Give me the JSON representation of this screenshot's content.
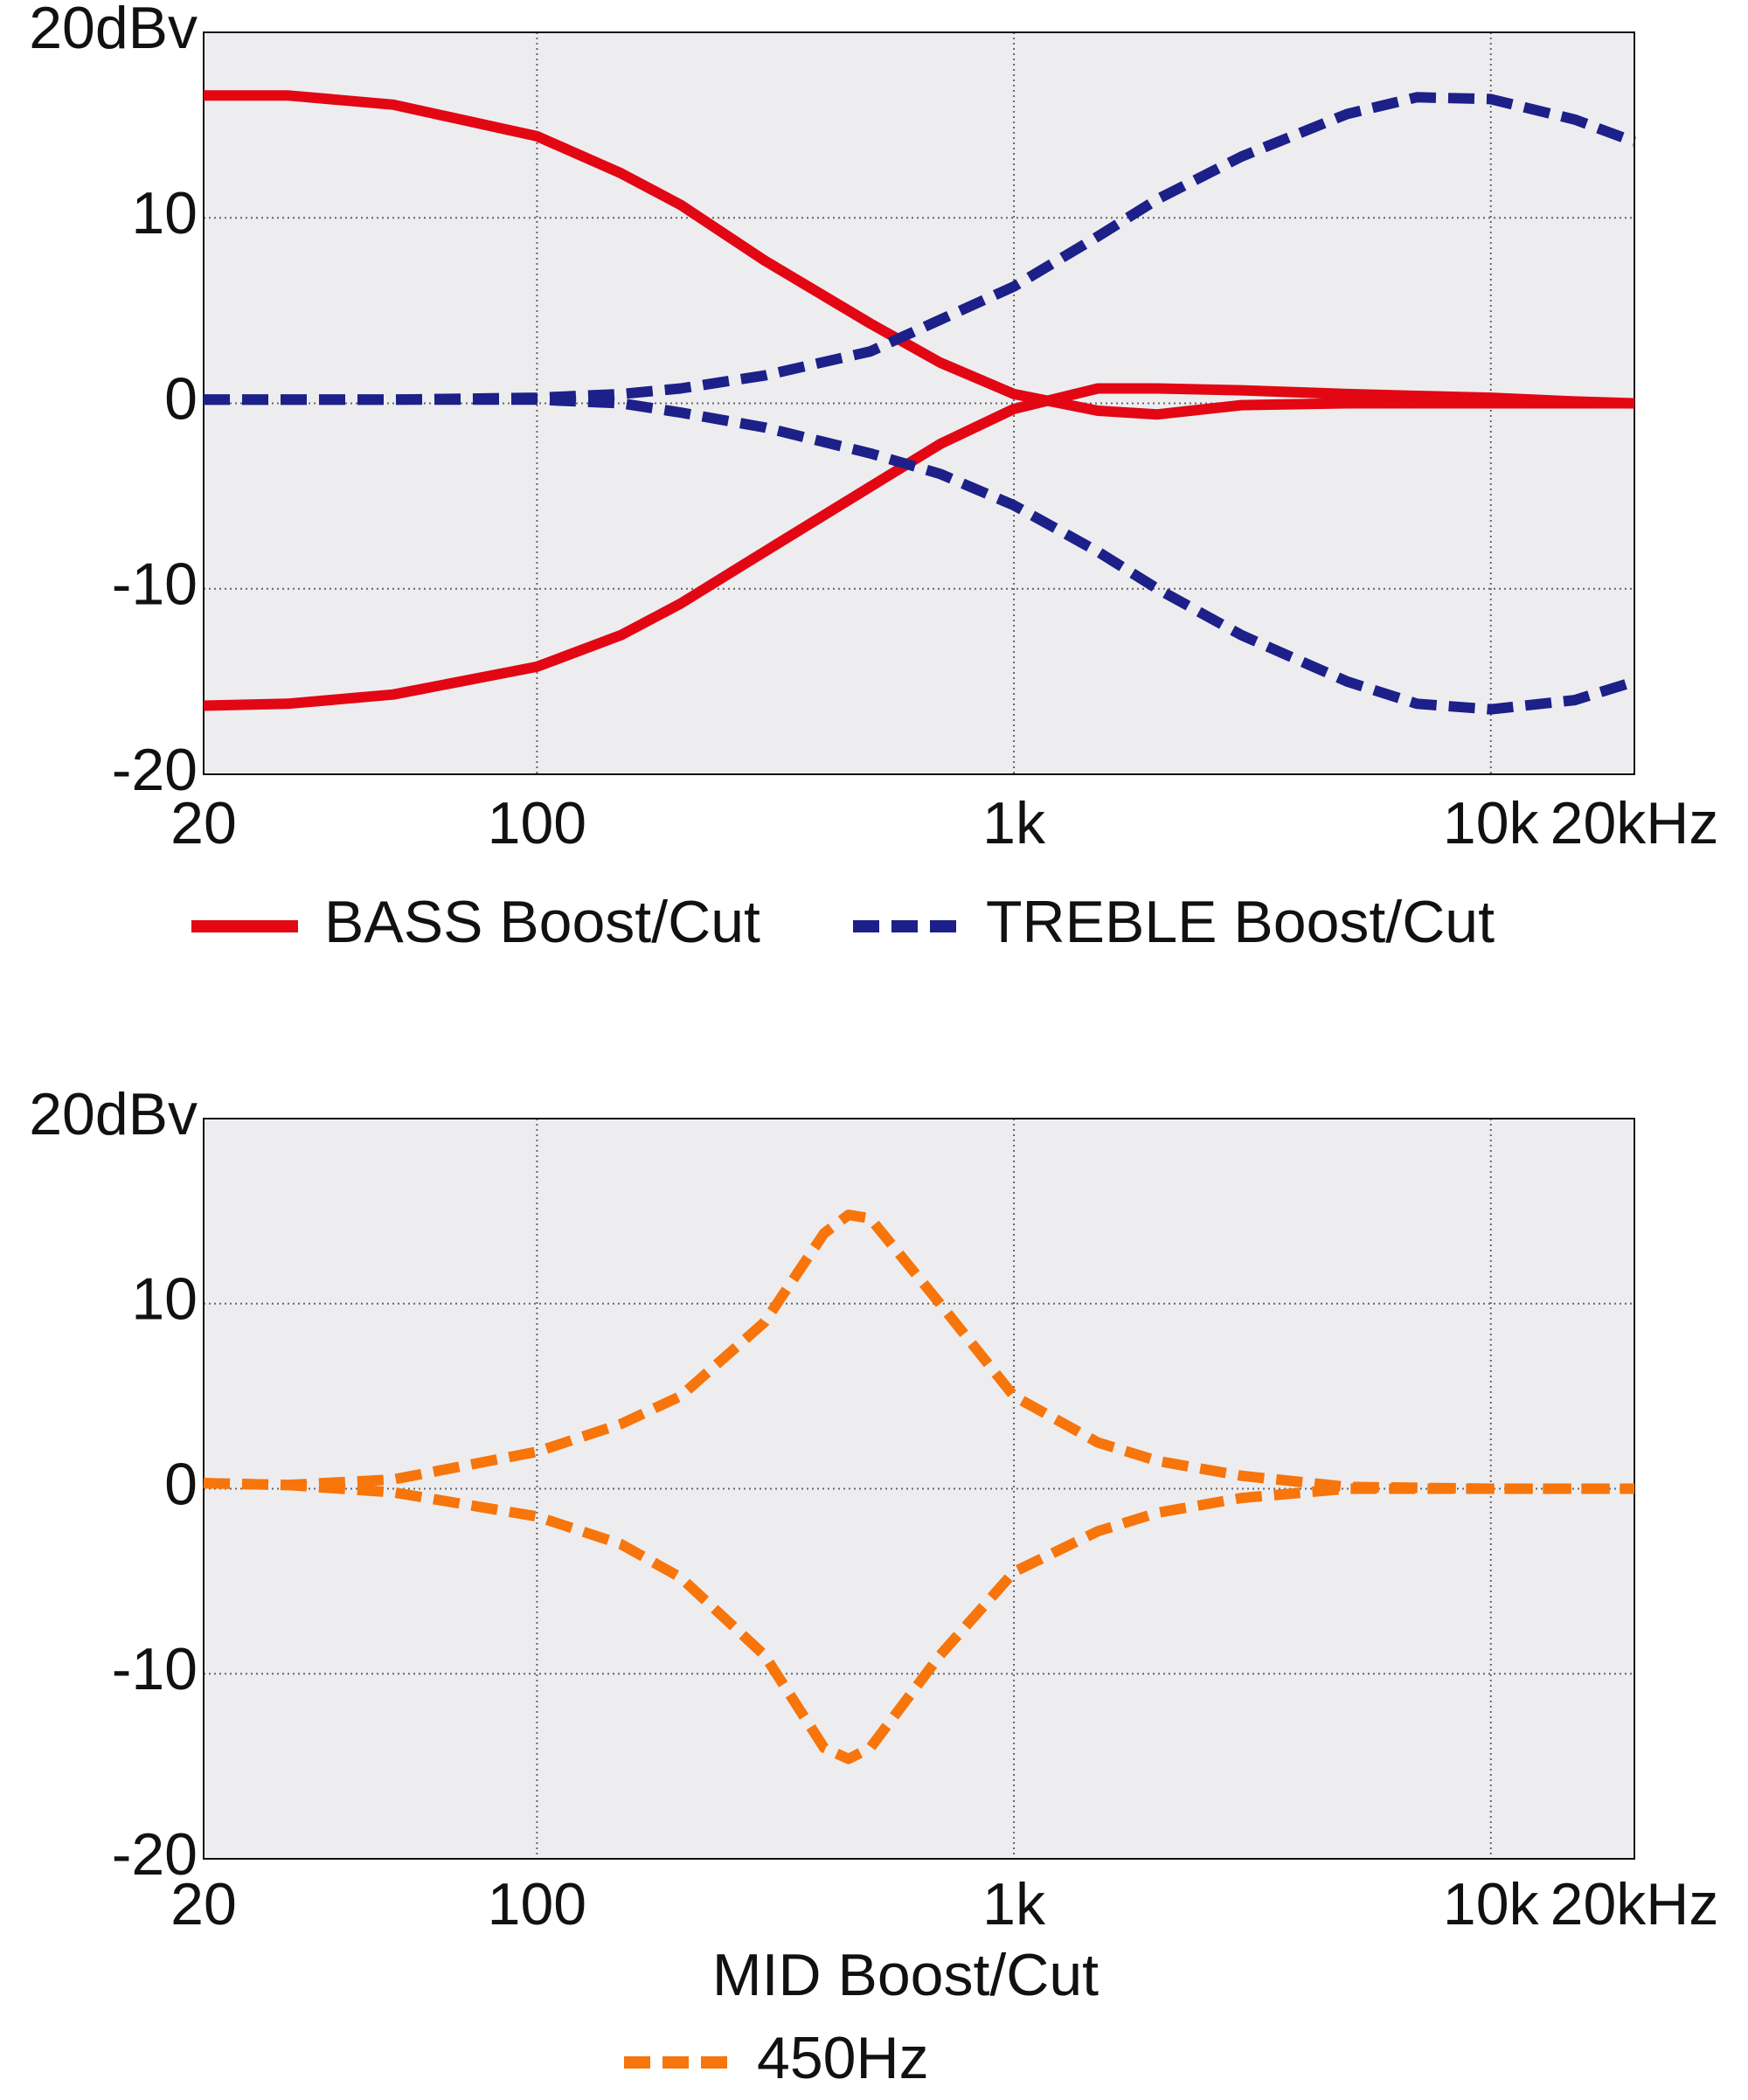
{
  "chart_data": [
    {
      "type": "line",
      "log_x": true,
      "grid": true,
      "x": [
        20,
        30,
        50,
        100,
        150,
        200,
        300,
        500,
        700,
        1000,
        1500,
        2000,
        3000,
        5000,
        7000,
        10000,
        15000,
        20000
      ],
      "xlim": [
        20,
        20000
      ],
      "xticks": [
        20,
        100,
        {
          "value": 1000,
          "label": "1k"
        },
        {
          "value": 10000,
          "label": "10k"
        },
        {
          "value": 20000,
          "label": "20kHz"
        }
      ],
      "ylim": [
        -20,
        20
      ],
      "yticks": [
        {
          "value": -20,
          "label": "-20"
        },
        -10,
        0,
        10,
        {
          "value": 20,
          "label": "20dBv"
        }
      ],
      "series": [
        {
          "name": "BASS Boost/Cut",
          "color": "#e30613",
          "dashed": false,
          "values": [
            [
              16.6,
              16.6,
              16.1,
              14.4,
              12.4,
              10.7,
              7.7,
              4.3,
              2.2,
              0.5,
              -0.4,
              -0.6,
              -0.1,
              0,
              0,
              0,
              0,
              0
            ],
            [
              -16.3,
              -16.2,
              -15.7,
              -14.2,
              -12.5,
              -10.8,
              -8,
              -4.5,
              -2.2,
              -0.3,
              0.8,
              0.8,
              0.7,
              0.5,
              0.4,
              0.3,
              0.1,
              0
            ]
          ]
        },
        {
          "name": "TREBLE Boost/Cut",
          "color": "#1d2088",
          "dashed": true,
          "values": [
            [
              0.2,
              0.2,
              0.2,
              0.3,
              0.5,
              0.8,
              1.5,
              2.8,
              4.5,
              6.3,
              9,
              11,
              13.3,
              15.6,
              16.5,
              16.4,
              15.3,
              14.1
            ],
            [
              0.2,
              0.2,
              0.2,
              0.2,
              0,
              -0.5,
              -1.3,
              -2.7,
              -3.8,
              -5.5,
              -8,
              -10,
              -12.5,
              -15,
              -16.2,
              -16.5,
              -16,
              -15
            ]
          ]
        }
      ]
    },
    {
      "type": "line",
      "log_x": true,
      "grid": true,
      "title": "MID Boost/Cut",
      "x": [
        20,
        30,
        50,
        100,
        150,
        200,
        300,
        400,
        450,
        500,
        700,
        1000,
        1500,
        2000,
        3000,
        5000,
        10000,
        20000
      ],
      "xlim": [
        20,
        20000
      ],
      "xticks": [
        20,
        100,
        {
          "value": 1000,
          "label": "1k"
        },
        {
          "value": 10000,
          "label": "10k"
        },
        {
          "value": 20000,
          "label": "20kHz"
        }
      ],
      "ylim": [
        -20,
        20
      ],
      "yticks": [
        {
          "value": -20,
          "label": "-20"
        },
        -10,
        0,
        10,
        {
          "value": 20,
          "label": "20dBv"
        }
      ],
      "series": [
        {
          "name": "450Hz",
          "color": "#f7750b",
          "dashed": true,
          "values": [
            [
              0.3,
              0.2,
              0.5,
              2,
              3.5,
              5,
              9,
              13.8,
              14.8,
              14.6,
              10,
              5,
              2.5,
              1.5,
              0.7,
              0.1,
              0,
              0
            ],
            [
              0.3,
              0.2,
              -0.2,
              -1.5,
              -3,
              -4.8,
              -9,
              -14,
              -14.6,
              -14,
              -9,
              -4.5,
              -2.3,
              -1.3,
              -0.5,
              0,
              0,
              0
            ]
          ]
        }
      ]
    }
  ]
}
